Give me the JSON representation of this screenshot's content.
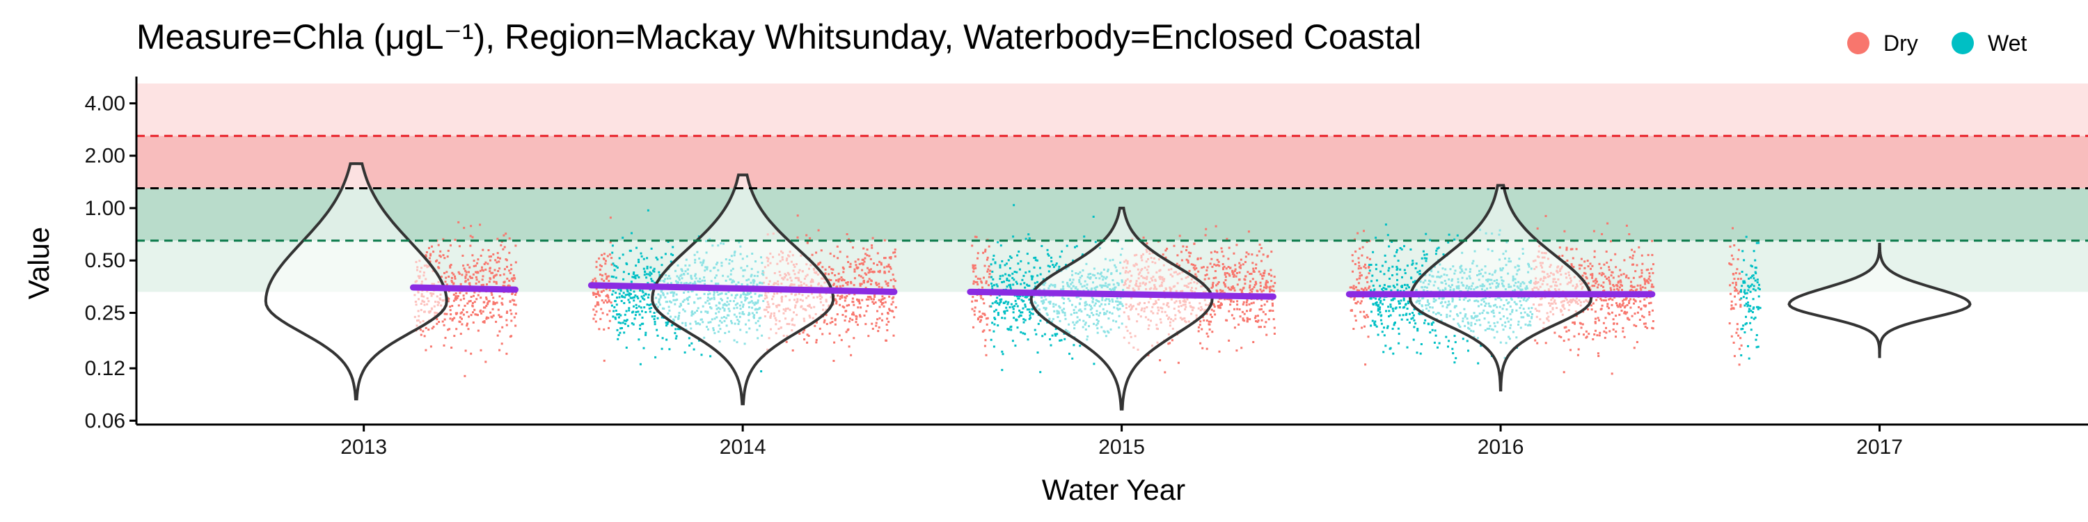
{
  "chart_data": {
    "type": "violin-scatter",
    "title": "Measure=Chla (μgL⁻¹), Region=Mackay Whitsunday, Waterbody=Enclosed Coastal",
    "xlabel": "Water Year",
    "ylabel": "Value",
    "scale_y": "log",
    "ylim": [
      0.057,
      5.2
    ],
    "y_ticks": [
      0.06,
      0.12,
      0.25,
      0.5,
      1.0,
      2.0,
      4.0
    ],
    "y_tick_labels": [
      "0.06",
      "0.12",
      "0.25",
      "0.50",
      "1.00",
      "2.00",
      "4.00"
    ],
    "x_ticks": [
      2013,
      2014,
      2015,
      2016,
      2017
    ],
    "x_tick_labels": [
      "2013",
      "2014",
      "2015",
      "2016",
      "2017"
    ],
    "xlim": [
      2012.4,
      2017.55
    ],
    "legend": {
      "position": "top-right",
      "entries": [
        {
          "label": "Dry",
          "color": "#F8766D"
        },
        {
          "label": "Wet",
          "color": "#00BFC4"
        }
      ]
    },
    "reference_lines": [
      {
        "y": 2.6,
        "color": "#E8222A",
        "style": "dashed"
      },
      {
        "y": 1.3,
        "color": "#000000",
        "style": "dashed"
      },
      {
        "y": 0.65,
        "color": "#0B7A4B",
        "style": "dashed"
      }
    ],
    "bands": [
      {
        "from": 2.6,
        "to": 5.2,
        "color": "#FDE3E3"
      },
      {
        "from": 1.3,
        "to": 2.6,
        "color": "#F8BDBD"
      },
      {
        "from": 0.65,
        "to": 1.3,
        "color": "#B9DCCB"
      },
      {
        "from": 0.33,
        "to": 0.65,
        "color": "#E6F3EC"
      }
    ],
    "violins": [
      {
        "x": 2012.98,
        "mode": 0.29,
        "ymin": 0.08,
        "ymax": 1.8,
        "upper_spread": 0.95,
        "lower_spread": 0.45
      },
      {
        "x": 2014.0,
        "mode": 0.3,
        "ymin": 0.075,
        "ymax": 1.55,
        "upper_spread": 0.9,
        "lower_spread": 0.45
      },
      {
        "x": 2015.0,
        "mode": 0.3,
        "ymin": 0.07,
        "ymax": 1.0,
        "upper_spread": 0.8,
        "lower_spread": 0.45
      },
      {
        "x": 2016.0,
        "mode": 0.3,
        "ymin": 0.09,
        "ymax": 1.35,
        "upper_spread": 0.85,
        "lower_spread": 0.4
      },
      {
        "x": 2017.0,
        "mode": 0.28,
        "ymin": 0.14,
        "ymax": 0.62,
        "upper_spread": 0.6,
        "lower_spread": 0.35
      }
    ],
    "series": [
      {
        "name": "Dry",
        "color": "#F8766D",
        "segments": [
          [
            2013.13,
            2013.4
          ],
          [
            2013.6,
            2013.65
          ],
          [
            2014.05,
            2014.4
          ],
          [
            2014.6,
            2014.65
          ],
          [
            2015.0,
            2015.4
          ],
          [
            2015.6,
            2015.65
          ],
          [
            2016.08,
            2016.4
          ],
          [
            2016.6,
            2016.63
          ]
        ],
        "median": 0.33,
        "low": 0.11,
        "high": 1.0
      },
      {
        "name": "Wet",
        "color": "#00BFC4",
        "segments": [
          [
            2013.65,
            2014.05
          ],
          [
            2014.65,
            2015.0
          ],
          [
            2015.65,
            2016.08
          ],
          [
            2016.63,
            2016.68
          ]
        ],
        "median": 0.31,
        "low": 0.1,
        "high": 0.8
      }
    ],
    "trend": {
      "color": "#8A2BE2",
      "points": [
        [
          2013.13,
          0.35
        ],
        [
          2013.4,
          0.34
        ],
        [
          2013.6,
          0.36
        ],
        [
          2014.4,
          0.33
        ],
        [
          2014.6,
          0.33
        ],
        [
          2015.4,
          0.31
        ],
        [
          2015.6,
          0.32
        ],
        [
          2016.4,
          0.32
        ]
      ]
    }
  }
}
